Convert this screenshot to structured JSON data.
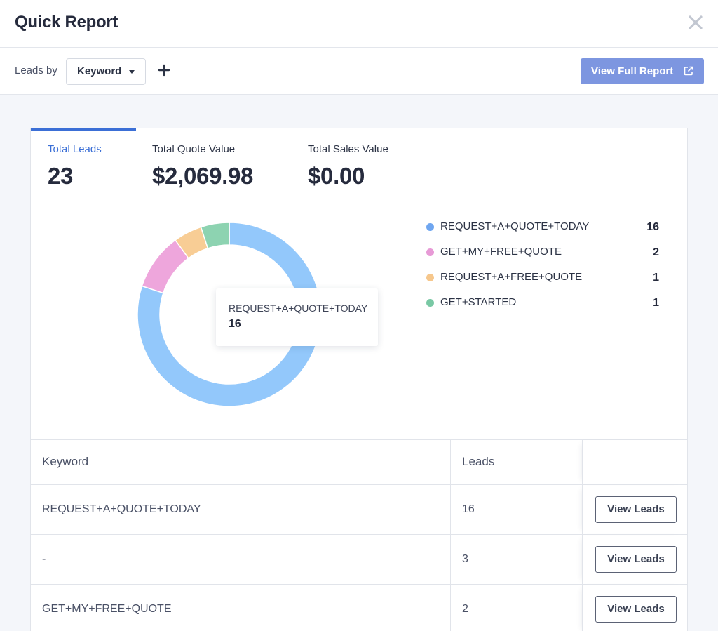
{
  "header": {
    "title": "Quick Report"
  },
  "toolbar": {
    "leads_by_label": "Leads by",
    "group_select_value": "Keyword",
    "view_full_report_label": "View Full Report"
  },
  "stats": [
    {
      "label": "Total Leads",
      "value": "23"
    },
    {
      "label": "Total Quote Value",
      "value": "$2,069.98"
    },
    {
      "label": "Total Sales Value",
      "value": "$0.00"
    }
  ],
  "chart_data": {
    "type": "pie",
    "variant": "donut",
    "categories": [
      "REQUEST+A+QUOTE+TODAY",
      "GET+MY+FREE+QUOTE",
      "REQUEST+A+FREE+QUOTE",
      "GET+STARTED"
    ],
    "values": [
      16,
      2,
      1,
      1
    ],
    "colors": [
      "#93c8fb",
      "#eea6dc",
      "#f8cd95",
      "#8dd3b1"
    ],
    "legend_dot_colors": [
      "#6fa6f0",
      "#e79ad6",
      "#f6c78c",
      "#79c8a4"
    ],
    "legend": "right",
    "tooltip": {
      "label": "REQUEST+A+QUOTE+TODAY",
      "value": "16"
    }
  },
  "table": {
    "headers": [
      "Keyword",
      "Leads",
      ""
    ],
    "rows": [
      {
        "keyword": "REQUEST+A+QUOTE+TODAY",
        "leads": "16",
        "action": "View Leads"
      },
      {
        "keyword": "-",
        "leads": "3",
        "action": "View Leads"
      },
      {
        "keyword": "GET+MY+FREE+QUOTE",
        "leads": "2",
        "action": "View Leads"
      }
    ]
  },
  "icons": {
    "close": "close-icon",
    "add": "plus-icon",
    "external": "external-link-icon",
    "dropdown": "caret-down-icon"
  }
}
